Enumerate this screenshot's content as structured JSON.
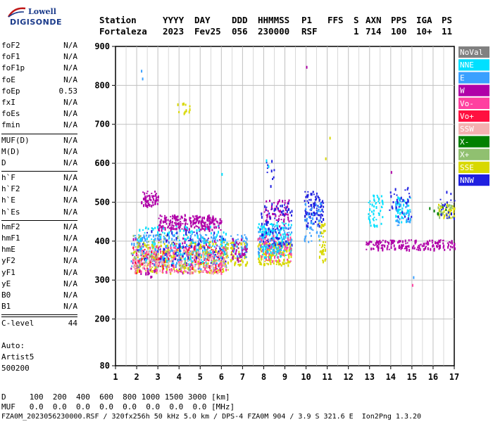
{
  "logo": {
    "brand_top": "Lowell",
    "brand_bottom": "DIGISONDE"
  },
  "header": {
    "labels": [
      "Station",
      "YYYY",
      "DAY",
      "DDD",
      "HHMMSS",
      "P1",
      "FFS",
      "S",
      "AXN",
      "PPS",
      "IGA",
      "PS"
    ],
    "values": [
      "Fortaleza",
      "2023",
      "Fev25",
      "056",
      "230000",
      "RSF",
      "",
      "1",
      "714",
      "100",
      "10+",
      "11"
    ]
  },
  "params": {
    "group1": [
      {
        "name": "foF2",
        "value": "N/A"
      },
      {
        "name": "foF1",
        "value": "N/A"
      },
      {
        "name": "foF1p",
        "value": "N/A"
      },
      {
        "name": "foE",
        "value": "N/A"
      },
      {
        "name": "foEp",
        "value": "0.53"
      },
      {
        "name": "fxI",
        "value": "N/A"
      },
      {
        "name": "foEs",
        "value": "N/A"
      },
      {
        "name": "fmin",
        "value": "N/A"
      }
    ],
    "group2": [
      {
        "name": "MUF(D)",
        "value": "N/A"
      },
      {
        "name": "M(D)",
        "value": "N/A"
      },
      {
        "name": "D",
        "value": "N/A"
      }
    ],
    "group3": [
      {
        "name": "h`F",
        "value": "N/A"
      },
      {
        "name": "h`F2",
        "value": "N/A"
      },
      {
        "name": "h`E",
        "value": "N/A"
      },
      {
        "name": "h`Es",
        "value": "N/A"
      }
    ],
    "group4": [
      {
        "name": "hmF2",
        "value": "N/A"
      },
      {
        "name": "hmF1",
        "value": "N/A"
      },
      {
        "name": "hmE",
        "value": "N/A"
      },
      {
        "name": "yF2",
        "value": "N/A"
      },
      {
        "name": "yF1",
        "value": "N/A"
      },
      {
        "name": "yE",
        "value": "N/A"
      },
      {
        "name": "B0",
        "value": "N/A"
      },
      {
        "name": "B1",
        "value": "N/A"
      }
    ],
    "group5": [
      {
        "name": "C-level",
        "value": "44"
      }
    ]
  },
  "auto": {
    "line1": "Auto:",
    "line2": "Artist5",
    "line3": "500200"
  },
  "legend": [
    {
      "label": "NoVal",
      "color": "#808080"
    },
    {
      "label": "NNE",
      "color": "#00e0ff"
    },
    {
      "label": "E",
      "color": "#3aa0ff"
    },
    {
      "label": "W",
      "color": "#b000a8"
    },
    {
      "label": "Vo-",
      "color": "#ff40a0"
    },
    {
      "label": "Vo+",
      "color": "#ff1040"
    },
    {
      "label": "SSW",
      "color": "#f4b0b0"
    },
    {
      "label": "X-",
      "color": "#008000"
    },
    {
      "label": "X+",
      "color": "#90c070"
    },
    {
      "label": "SSE",
      "color": "#d8d800"
    },
    {
      "label": "NNW",
      "color": "#2020e0"
    }
  ],
  "footer": {
    "d_row": "D     100  200  400  600  800 1000 1500 3000 [km]",
    "muf_row": "MUF   0.0  0.0  0.0  0.0  0.0  0.0  0.0  0.0 [MHz]",
    "info_row": "FZA0M_2023056230000.RSF / 320fx256h 50 kHz 5.0 km / DPS-4 FZA0M 904 / 3.9 S 321.6 E  Ion2Png 1.3.20"
  },
  "chart_data": {
    "type": "scatter",
    "xlim": [
      1,
      17
    ],
    "ylim": [
      80,
      900
    ],
    "x_ticks": [
      1,
      2,
      3,
      4,
      5,
      6,
      7,
      8,
      9,
      10,
      11,
      12,
      13,
      14,
      15,
      16,
      17
    ],
    "y_ticks": [
      80,
      200,
      300,
      400,
      500,
      600,
      700,
      800,
      900
    ],
    "grid": true,
    "legend_position": "right",
    "clusters": [
      {
        "series": "W",
        "x": [
          2.2,
          3.0
        ],
        "y": [
          490,
          530
        ],
        "n": 60
      },
      {
        "series": "W",
        "x": [
          3.0,
          5.6
        ],
        "y": [
          430,
          470
        ],
        "n": 220
      },
      {
        "series": "W",
        "x": [
          5.6,
          6.0
        ],
        "y": [
          430,
          460
        ],
        "n": 20
      },
      {
        "series": "W",
        "x": [
          8.0,
          9.2
        ],
        "y": [
          440,
          510
        ],
        "n": 70
      },
      {
        "series": "W",
        "x": [
          12.8,
          17.0
        ],
        "y": [
          380,
          405
        ],
        "n": 180
      },
      {
        "series": "W",
        "x": [
          1.7,
          6.2
        ],
        "y": [
          320,
          410
        ],
        "n": 160
      },
      {
        "series": "E",
        "x": [
          1.7,
          6.2
        ],
        "y": [
          330,
          420
        ],
        "n": 260
      },
      {
        "series": "NNE",
        "x": [
          2.0,
          6.3
        ],
        "y": [
          340,
          440
        ],
        "n": 200
      },
      {
        "series": "SSE",
        "x": [
          1.8,
          6.3
        ],
        "y": [
          320,
          400
        ],
        "n": 260
      },
      {
        "series": "Vo-",
        "x": [
          1.8,
          6.2
        ],
        "y": [
          320,
          390
        ],
        "n": 170
      },
      {
        "series": "SSW",
        "x": [
          1.8,
          6.3
        ],
        "y": [
          320,
          380
        ],
        "n": 150
      },
      {
        "series": "Vo+",
        "x": [
          1.8,
          6.0
        ],
        "y": [
          320,
          390
        ],
        "n": 60
      },
      {
        "series": "X+",
        "x": [
          1.7,
          6.3
        ],
        "y": [
          330,
          420
        ],
        "n": 60
      },
      {
        "series": "NNW",
        "x": [
          2.0,
          6.2
        ],
        "y": [
          340,
          430
        ],
        "n": 70
      },
      {
        "series": "SSE",
        "x": [
          6.4,
          7.2
        ],
        "y": [
          340,
          400
        ],
        "n": 70
      },
      {
        "series": "E",
        "x": [
          6.4,
          7.2
        ],
        "y": [
          360,
          420
        ],
        "n": 50
      },
      {
        "series": "W",
        "x": [
          6.4,
          7.2
        ],
        "y": [
          350,
          410
        ],
        "n": 40
      },
      {
        "series": "SSE",
        "x": [
          7.7,
          9.3
        ],
        "y": [
          340,
          400
        ],
        "n": 160
      },
      {
        "series": "E",
        "x": [
          7.7,
          9.3
        ],
        "y": [
          370,
          440
        ],
        "n": 140
      },
      {
        "series": "NNE",
        "x": [
          7.7,
          9.3
        ],
        "y": [
          360,
          450
        ],
        "n": 110
      },
      {
        "series": "Vo-",
        "x": [
          7.7,
          9.3
        ],
        "y": [
          350,
          420
        ],
        "n": 60
      },
      {
        "series": "NNW",
        "x": [
          7.8,
          9.3
        ],
        "y": [
          390,
          500
        ],
        "n": 80
      },
      {
        "series": "NNW",
        "x": [
          9.9,
          10.8
        ],
        "y": [
          440,
          530
        ],
        "n": 90
      },
      {
        "series": "E",
        "x": [
          9.9,
          10.7
        ],
        "y": [
          400,
          500
        ],
        "n": 50
      },
      {
        "series": "SSE",
        "x": [
          10.6,
          10.9
        ],
        "y": [
          350,
          450
        ],
        "n": 40
      },
      {
        "series": "NNE",
        "x": [
          12.9,
          13.6
        ],
        "y": [
          440,
          520
        ],
        "n": 50
      },
      {
        "series": "NNE",
        "x": [
          14.2,
          14.9
        ],
        "y": [
          450,
          520
        ],
        "n": 50
      },
      {
        "series": "E",
        "x": [
          14.2,
          14.9
        ],
        "y": [
          440,
          510
        ],
        "n": 30
      },
      {
        "series": "NNW",
        "x": [
          13.9,
          15.0
        ],
        "y": [
          460,
          540
        ],
        "n": 30
      },
      {
        "series": "SSE",
        "x": [
          16.2,
          17.0
        ],
        "y": [
          460,
          500
        ],
        "n": 40
      },
      {
        "series": "X+",
        "x": [
          16.2,
          17.0
        ],
        "y": [
          460,
          500
        ],
        "n": 25
      },
      {
        "series": "NNW",
        "x": [
          16.3,
          17.0
        ],
        "y": [
          460,
          530
        ],
        "n": 20
      },
      {
        "series": "X-",
        "x": [
          15.8,
          16.6
        ],
        "y": [
          470,
          490
        ],
        "n": 6
      },
      {
        "series": "SSE",
        "x": [
          3.7,
          4.7
        ],
        "y": [
          730,
          760
        ],
        "n": 12
      },
      {
        "series": "W",
        "x": [
          2.3,
          2.9
        ],
        "y": [
          310,
          330
        ],
        "n": 12
      },
      {
        "series": "NNW",
        "x": [
          8.1,
          8.5
        ],
        "y": [
          540,
          610
        ],
        "n": 10
      }
    ],
    "points": [
      {
        "series": "E",
        "x": 2.2,
        "y": 840
      },
      {
        "series": "E",
        "x": 2.25,
        "y": 820
      },
      {
        "series": "W",
        "x": 10.0,
        "y": 850
      },
      {
        "series": "SSE",
        "x": 11.1,
        "y": 668
      },
      {
        "series": "NNE",
        "x": 8.1,
        "y": 610
      },
      {
        "series": "NNE",
        "x": 8.2,
        "y": 595
      },
      {
        "series": "E",
        "x": 15.05,
        "y": 310
      },
      {
        "series": "Vo-",
        "x": 15.0,
        "y": 290
      },
      {
        "series": "SSE",
        "x": 10.9,
        "y": 615
      },
      {
        "series": "W",
        "x": 14.0,
        "y": 580
      },
      {
        "series": "NNE",
        "x": 6.0,
        "y": 575
      }
    ]
  }
}
